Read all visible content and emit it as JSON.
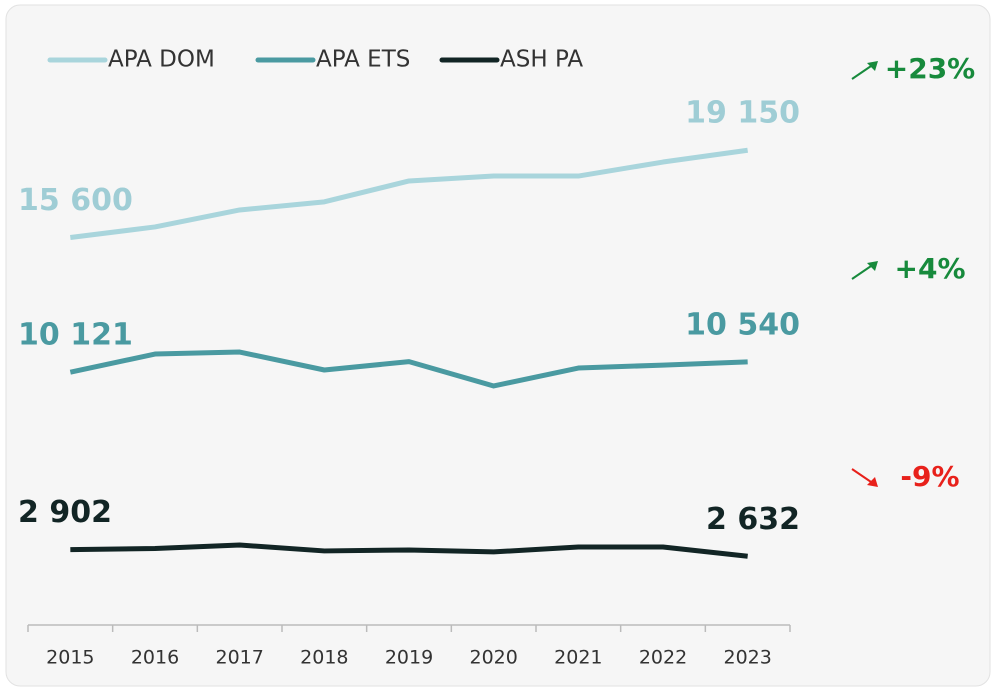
{
  "chart_data": {
    "type": "line",
    "categories": [
      "2015",
      "2016",
      "2017",
      "2018",
      "2019",
      "2020",
      "2021",
      "2022",
      "2023"
    ],
    "series": [
      {
        "name": "APA DOM",
        "color": "#a9d5dc",
        "values": [
          15600,
          16030,
          16720,
          17050,
          17900,
          18100,
          18100,
          18670,
          19150
        ],
        "value_labels": [
          "15 600",
          null,
          null,
          null,
          null,
          null,
          null,
          null,
          "19 150"
        ],
        "change": "+23%",
        "change_color": "#178a3c"
      },
      {
        "name": "APA ETS",
        "color": "#4a9aa1",
        "values": [
          10121,
          10860,
          10940,
          10210,
          10550,
          9560,
          10290,
          10410,
          10540
        ],
        "value_labels": [
          "10 121",
          null,
          null,
          null,
          null,
          null,
          null,
          null,
          "10 540"
        ],
        "change": "+4%",
        "change_color": "#178a3c"
      },
      {
        "name": "ASH PA",
        "color": "#122525",
        "values": [
          2902,
          2950,
          3090,
          2850,
          2890,
          2810,
          3010,
          3010,
          2632
        ],
        "value_labels": [
          "2 902",
          null,
          null,
          null,
          null,
          null,
          null,
          null,
          "2 632"
        ],
        "change": "-9%",
        "change_color": "#e8211b"
      }
    ],
    "ylim": [
      0,
      24000
    ]
  }
}
